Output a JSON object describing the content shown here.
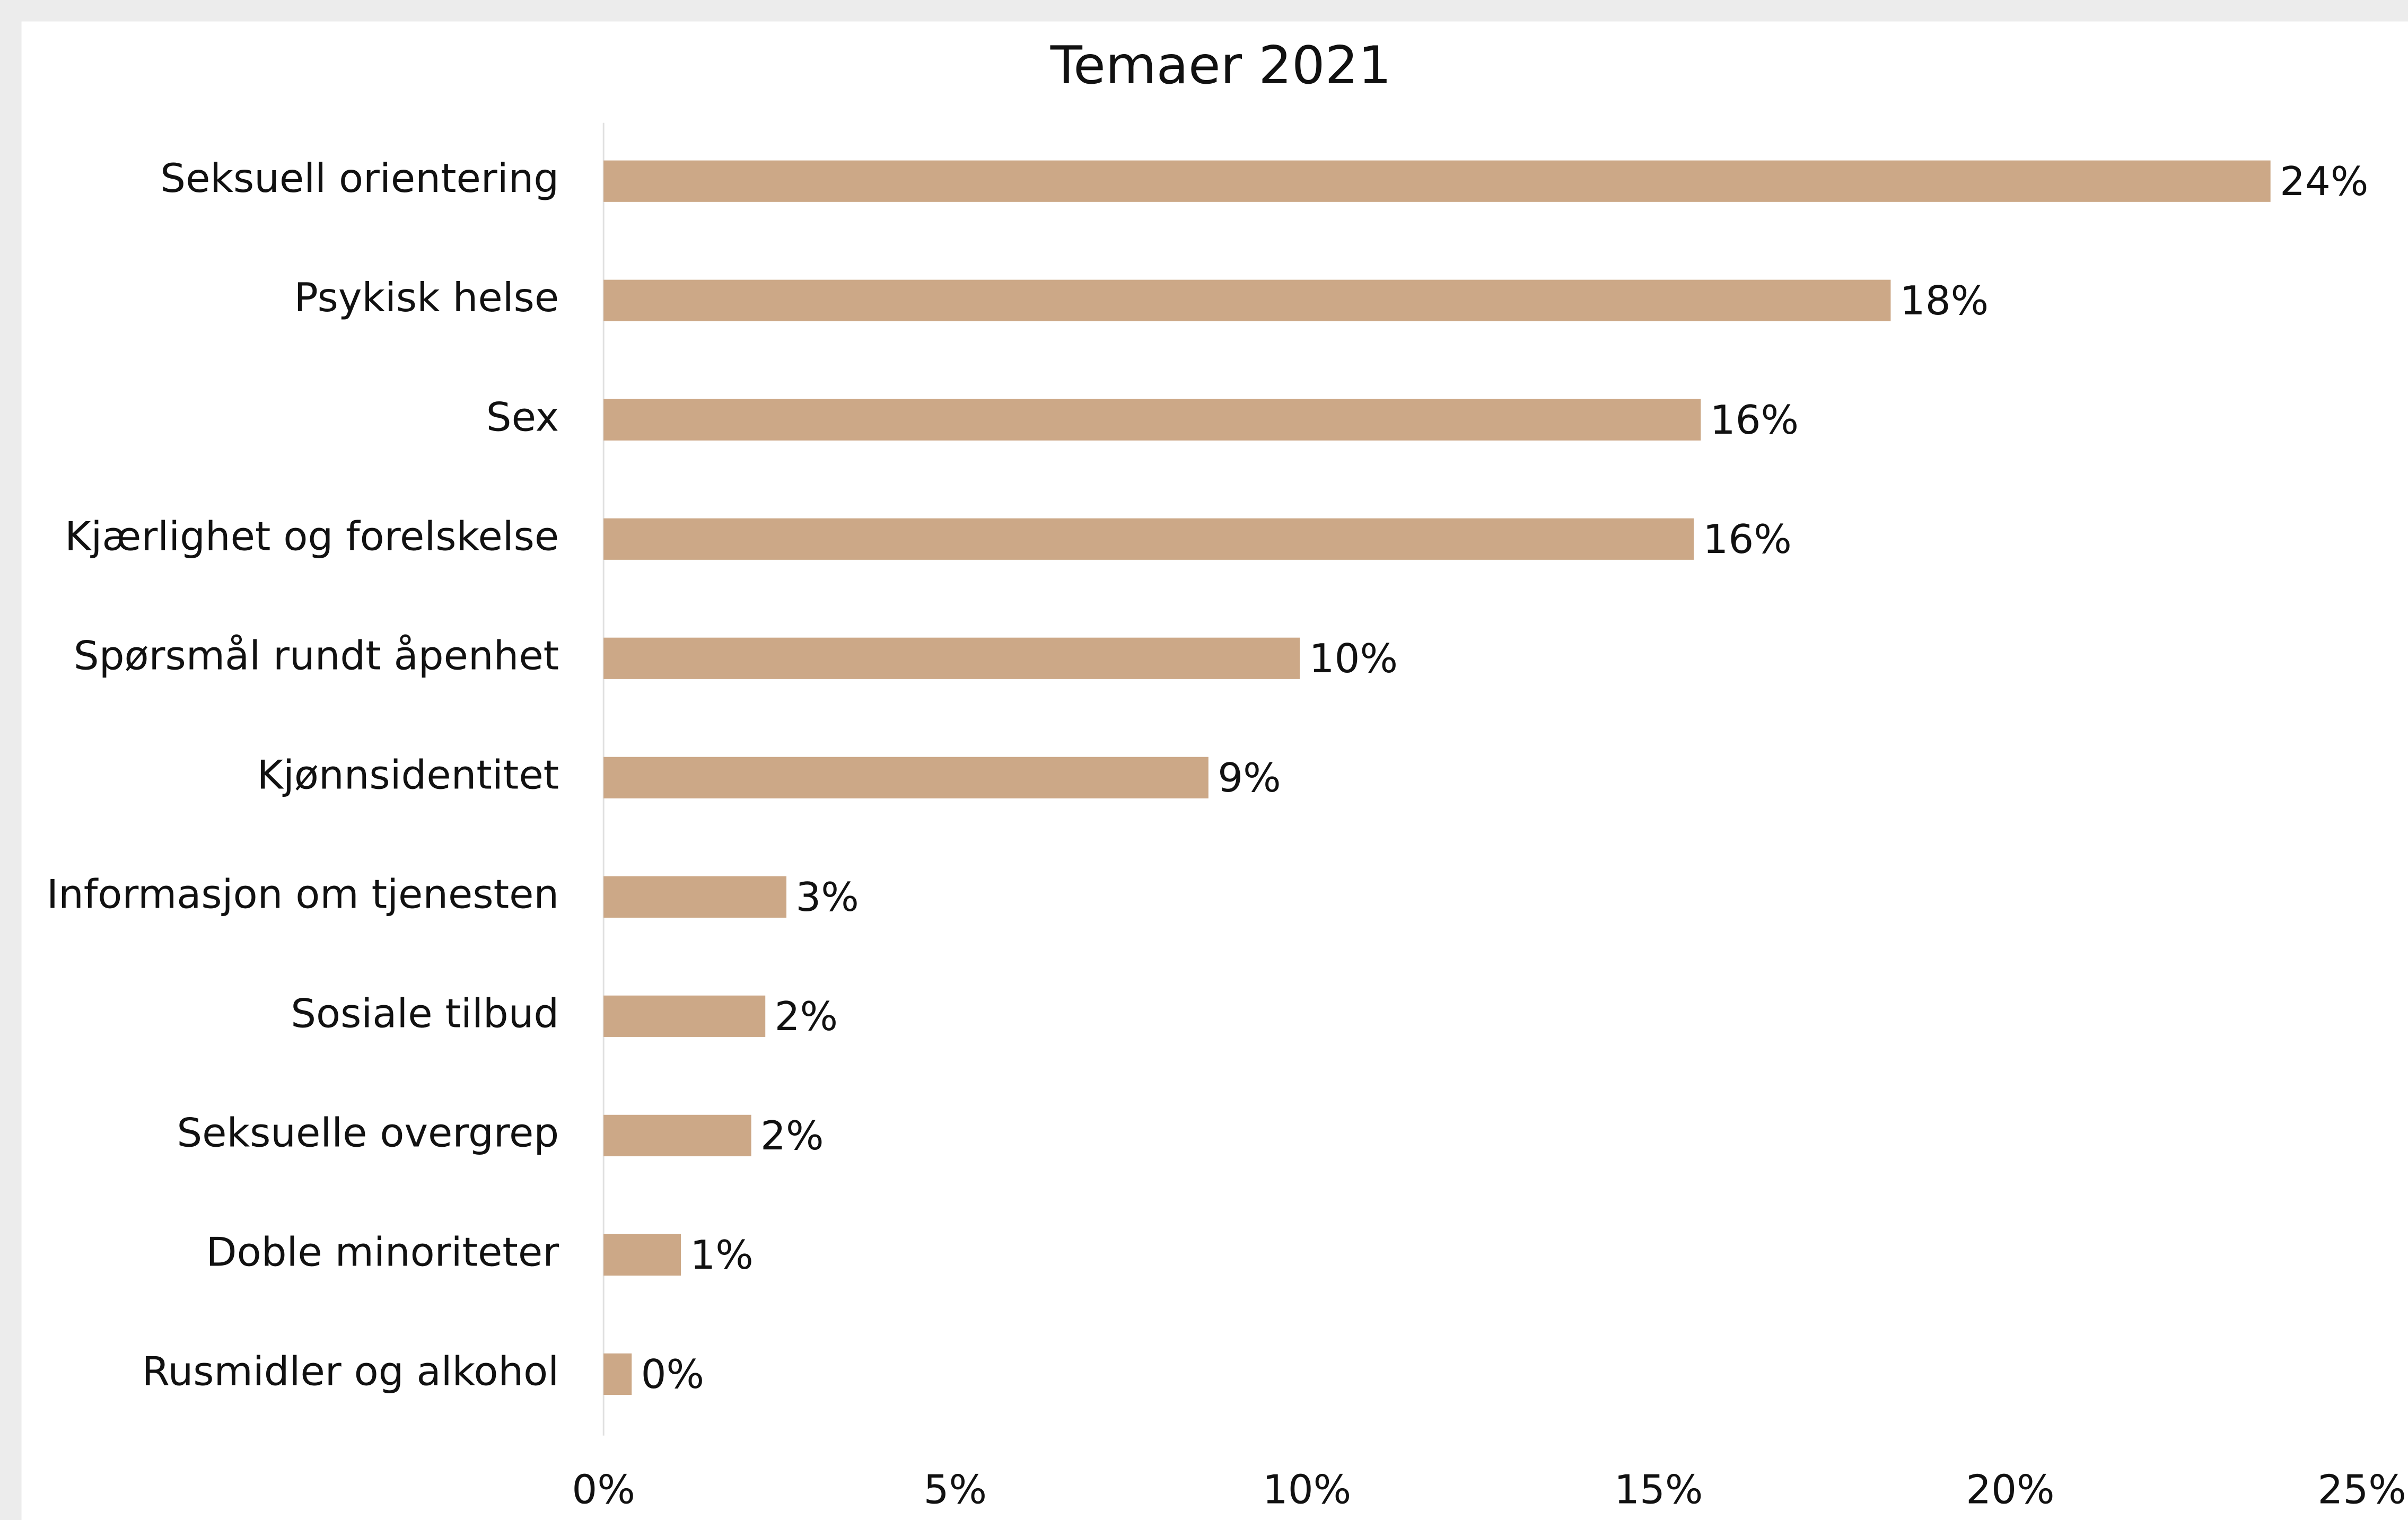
{
  "chart_data": {
    "type": "bar",
    "orientation": "horizontal",
    "title": "Temaer 2021",
    "categories": [
      "Seksuell orientering",
      "Psykisk helse",
      "Sex",
      "Kjærlighet og forelskelse",
      "Spørsmål rundt åpenhet",
      "Kjønnsidentitet",
      "Informasjon om tjenesten",
      "Sosiale tilbud",
      "Seksuelle overgrep",
      "Doble minoriteter",
      "Rusmidler og alkohol"
    ],
    "values": [
      23.7,
      18.3,
      15.6,
      15.5,
      9.9,
      8.6,
      2.6,
      2.3,
      2.1,
      1.1,
      0.4
    ],
    "value_labels": [
      "24%",
      "18%",
      "16%",
      "16%",
      "10%",
      "9%",
      "3%",
      "2%",
      "2%",
      "1%",
      "0%"
    ],
    "color": "#cca887",
    "xlim": [
      0,
      25
    ],
    "xticks": [
      {
        "value": 0,
        "label": "0%"
      },
      {
        "value": 5,
        "label": "5%"
      },
      {
        "value": 10,
        "label": "10%"
      },
      {
        "value": 15,
        "label": "15%"
      },
      {
        "value": 20,
        "label": "20%"
      },
      {
        "value": 25,
        "label": "25%"
      }
    ],
    "grid": false
  }
}
